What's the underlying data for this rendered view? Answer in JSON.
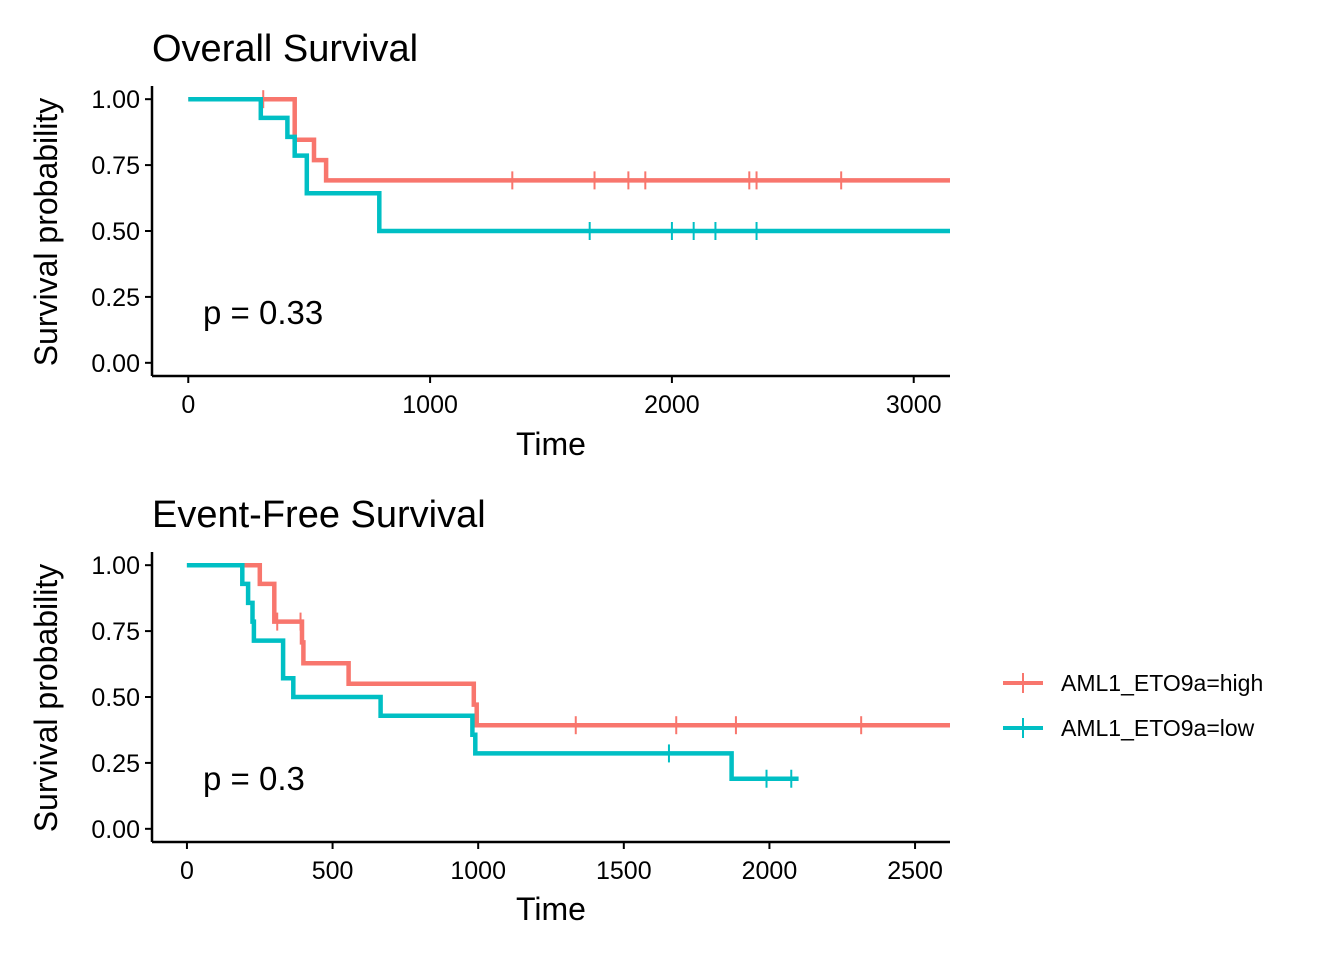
{
  "colors": {
    "high": "#F8766D",
    "low": "#00BFC4"
  },
  "legend": {
    "items": [
      {
        "key": "high",
        "label": "AML1_ETO9a=high"
      },
      {
        "key": "low",
        "label": "AML1_ETO9a=low"
      }
    ]
  },
  "chart_data": [
    {
      "type": "line",
      "subtype": "kaplan-meier step",
      "title": "Overall Survival",
      "xlabel": "Time",
      "ylabel": "Survival probability",
      "xlim": [
        -150,
        3150
      ],
      "ylim": [
        -0.05,
        1.05
      ],
      "x_ticks": [
        0,
        1000,
        2000,
        3000
      ],
      "y_ticks": [
        0,
        0.25,
        0.5,
        0.75,
        1
      ],
      "y_tick_labels": [
        "0.00",
        "0.25",
        "0.50",
        "0.75",
        "1.00"
      ],
      "pvalue_text": "p = 0.33",
      "grid": false,
      "series": [
        {
          "name": "AML1_ETO9a=high",
          "color_key": "high",
          "steps": [
            [
              0,
              1.0
            ],
            [
              440,
              0.846
            ],
            [
              520,
              0.769
            ],
            [
              570,
              0.692
            ],
            [
              3150,
              0.692
            ]
          ],
          "censored": [
            [
              310,
              1.0
            ],
            [
              1340,
              0.692
            ],
            [
              1680,
              0.692
            ],
            [
              1820,
              0.692
            ],
            [
              1890,
              0.692
            ],
            [
              2320,
              0.692
            ],
            [
              2350,
              0.692
            ],
            [
              2700,
              0.692
            ]
          ]
        },
        {
          "name": "AML1_ETO9a=low",
          "color_key": "low",
          "steps": [
            [
              0,
              1.0
            ],
            [
              300,
              0.929
            ],
            [
              410,
              0.857
            ],
            [
              440,
              0.786
            ],
            [
              490,
              0.643
            ],
            [
              790,
              0.5
            ],
            [
              3150,
              0.5
            ]
          ],
          "censored": [
            [
              1660,
              0.5
            ],
            [
              2000,
              0.5
            ],
            [
              2090,
              0.5
            ],
            [
              2180,
              0.5
            ],
            [
              2350,
              0.5
            ]
          ]
        }
      ]
    },
    {
      "type": "line",
      "subtype": "kaplan-meier step",
      "title": "Event-Free Survival",
      "xlabel": "Time",
      "ylabel": "Survival probability",
      "xlim": [
        -120,
        2620
      ],
      "ylim": [
        -0.05,
        1.05
      ],
      "x_ticks": [
        0,
        500,
        1000,
        1500,
        2000,
        2500
      ],
      "y_ticks": [
        0,
        0.25,
        0.5,
        0.75,
        1
      ],
      "y_tick_labels": [
        "0.00",
        "0.25",
        "0.50",
        "0.75",
        "1.00"
      ],
      "pvalue_text": "p = 0.3",
      "grid": false,
      "series": [
        {
          "name": "AML1_ETO9a=high",
          "color_key": "high",
          "steps": [
            [
              0,
              1.0
            ],
            [
              250,
              0.929
            ],
            [
              300,
              0.786
            ],
            [
              395,
              0.707
            ],
            [
              400,
              0.628
            ],
            [
              555,
              0.55
            ],
            [
              985,
              0.471
            ],
            [
              995,
              0.393
            ],
            [
              2620,
              0.393
            ]
          ],
          "censored": [
            [
              310,
              0.786
            ],
            [
              390,
              0.786
            ],
            [
              1335,
              0.393
            ],
            [
              1680,
              0.393
            ],
            [
              1885,
              0.393
            ],
            [
              2315,
              0.393
            ]
          ]
        },
        {
          "name": "AML1_ETO9a=low",
          "color_key": "low",
          "steps": [
            [
              0,
              1.0
            ],
            [
              190,
              0.929
            ],
            [
              210,
              0.857
            ],
            [
              225,
              0.786
            ],
            [
              230,
              0.714
            ],
            [
              330,
              0.571
            ],
            [
              365,
              0.5
            ],
            [
              665,
              0.429
            ],
            [
              980,
              0.357
            ],
            [
              990,
              0.286
            ],
            [
              1870,
              0.19
            ],
            [
              2100,
              0.19
            ]
          ],
          "censored": [
            [
              1655,
              0.286
            ],
            [
              1990,
              0.19
            ],
            [
              2075,
              0.19
            ]
          ]
        }
      ]
    }
  ]
}
